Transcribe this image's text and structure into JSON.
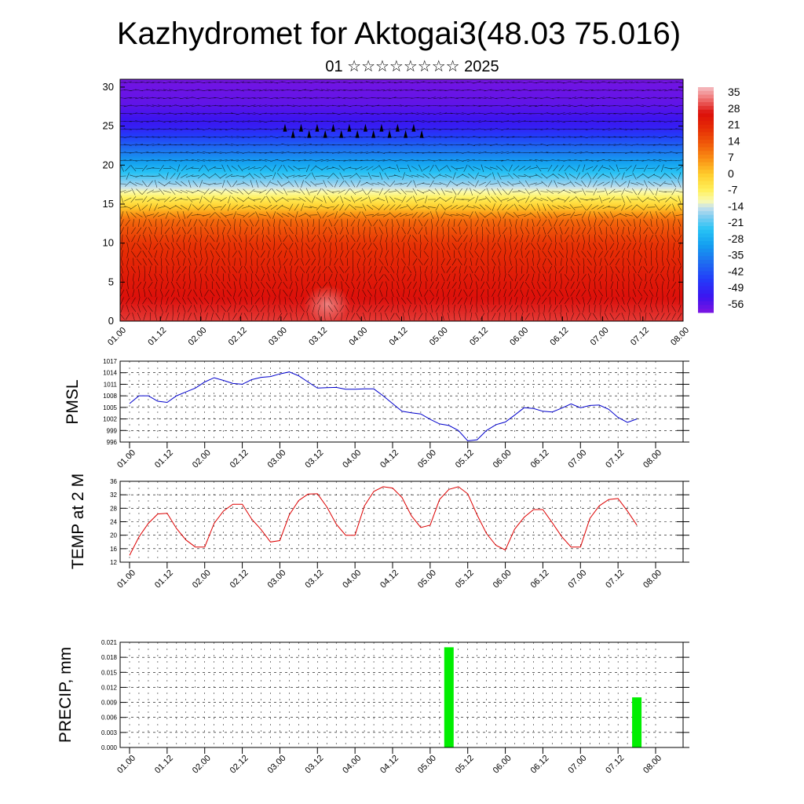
{
  "title": "Kazhydromet for Aktogai3(48.03 75.016)",
  "subtitle": "01 ☆☆☆☆☆☆☆☆ 2025",
  "time_ticks": [
    "01.00",
    "01.12",
    "02.00",
    "02.12",
    "03.00",
    "03.12",
    "04.00",
    "04.12",
    "05.00",
    "05.12",
    "06.00",
    "06.12",
    "07.00",
    "07.12",
    "08.00"
  ],
  "colors": {
    "pmsl_line": "#0000cc",
    "temp_line": "#dd0000",
    "precip_bar": "#00ee00"
  },
  "chart_data": [
    {
      "type": "heatmap",
      "name": "cross-section",
      "y_ticks": [
        "0",
        "5",
        "10",
        "15",
        "20",
        "25",
        "30"
      ],
      "ylim": [
        0,
        31
      ],
      "xlim": [
        0,
        14
      ],
      "value_profile": {
        "heights": [
          0,
          5,
          10,
          13,
          15,
          17,
          20,
          23,
          25,
          28,
          31
        ],
        "values": [
          31,
          26,
          20,
          12,
          -2,
          -14,
          -30,
          -44,
          -54,
          -60,
          -62
        ]
      },
      "colorbar": {
        "labels": [
          "35",
          "28",
          "21",
          "14",
          "7",
          "0",
          "-7",
          "-14",
          "-21",
          "-28",
          "-35",
          "-42",
          "-49",
          "-56"
        ],
        "range": [
          -63,
          40
        ]
      },
      "markers": {
        "height": 24.5,
        "x": [
          4.1,
          4.3,
          4.5,
          4.7,
          4.9,
          5.1,
          5.3,
          5.5,
          5.7,
          5.9,
          6.1,
          6.3,
          6.5,
          6.7,
          6.9,
          7.1,
          7.3,
          7.5
        ]
      }
    },
    {
      "type": "line",
      "name": "pmsl",
      "ylabel": "PMSL",
      "y_ticks": [
        "996",
        "999",
        "1002",
        "1005",
        "1008",
        "1011",
        "1014",
        "1017"
      ],
      "ylim": [
        996,
        1017
      ],
      "x": [
        0,
        0.25,
        0.5,
        0.75,
        1,
        1.25,
        1.5,
        1.75,
        2,
        2.25,
        2.5,
        2.75,
        3,
        3.25,
        3.5,
        3.75,
        4,
        4.25,
        4.5,
        4.75,
        5,
        5.25,
        5.5,
        5.75,
        6,
        6.25,
        6.5,
        6.75,
        7,
        7.25,
        7.5,
        7.75,
        8,
        8.25,
        8.5,
        8.75,
        9,
        9.25,
        9.5,
        9.75,
        10,
        10.25,
        10.5,
        10.75,
        11,
        11.25,
        11.5,
        11.75,
        12,
        12.25,
        12.5,
        12.75,
        13,
        13.25,
        13.5
      ],
      "values": [
        1006,
        1008,
        1008,
        1006.6,
        1006.3,
        1008,
        1009,
        1010,
        1011.6,
        1012.7,
        1012,
        1011.2,
        1011,
        1012.2,
        1012.8,
        1013,
        1013.7,
        1014.2,
        1013.2,
        1011.6,
        1010,
        1010.1,
        1010.2,
        1009.7,
        1009.7,
        1009.8,
        1009.8,
        1008,
        1006,
        1004,
        1003.6,
        1003.3,
        1001.9,
        1000.7,
        1000.3,
        999,
        996.3,
        996.6,
        999,
        1000.5,
        1001.2,
        1003,
        1004.9,
        1004.7,
        1004,
        1003.8,
        1004.8,
        1005.9,
        1004.9,
        1005.5,
        1005.6,
        1004.5,
        1002.4,
        1001.1,
        1002
      ]
    },
    {
      "type": "line",
      "name": "temp",
      "ylabel": "TEMP at 2 M",
      "y_ticks": [
        "12",
        "16",
        "20",
        "24",
        "28",
        "32",
        "36"
      ],
      "ylim": [
        12,
        36
      ],
      "x": [
        0,
        0.25,
        0.5,
        0.75,
        1,
        1.25,
        1.5,
        1.75,
        2,
        2.25,
        2.5,
        2.75,
        3,
        3.25,
        3.5,
        3.75,
        4,
        4.25,
        4.5,
        4.75,
        5,
        5.25,
        5.5,
        5.75,
        6,
        6.25,
        6.5,
        6.75,
        7,
        7.25,
        7.5,
        7.75,
        8,
        8.25,
        8.5,
        8.75,
        9,
        9.25,
        9.5,
        9.75,
        10,
        10.25,
        10.5,
        10.75,
        11,
        11.25,
        11.5,
        11.75,
        12,
        12.25,
        12.5,
        12.75,
        13,
        13.25,
        13.5
      ],
      "values": [
        14,
        19.5,
        23.5,
        26.3,
        26.5,
        22,
        18.6,
        16.5,
        16.5,
        23.5,
        27.2,
        29.2,
        29.2,
        24.8,
        21.7,
        18,
        18.4,
        26,
        30.3,
        32.2,
        32.3,
        28.4,
        23.3,
        20,
        20,
        28.7,
        33,
        34.4,
        34,
        31.2,
        25.8,
        22.3,
        23,
        30.6,
        33.6,
        34.4,
        32.3,
        26,
        20.5,
        17,
        15.6,
        21.8,
        25.3,
        27.6,
        27.6,
        23.7,
        19.6,
        16.5,
        16.5,
        25,
        28.7,
        30.6,
        30.9,
        27.2,
        23
      ]
    },
    {
      "type": "bar",
      "name": "precip",
      "ylabel": "PRECIP, mm",
      "y_ticks": [
        "0.000",
        "0.003",
        "0.006",
        "0.009",
        "0.012",
        "0.015",
        "0.018",
        "0.021"
      ],
      "ylim": [
        0,
        0.021
      ],
      "x": [
        8.5,
        13.5
      ],
      "values": [
        0.02,
        0.01
      ]
    }
  ]
}
